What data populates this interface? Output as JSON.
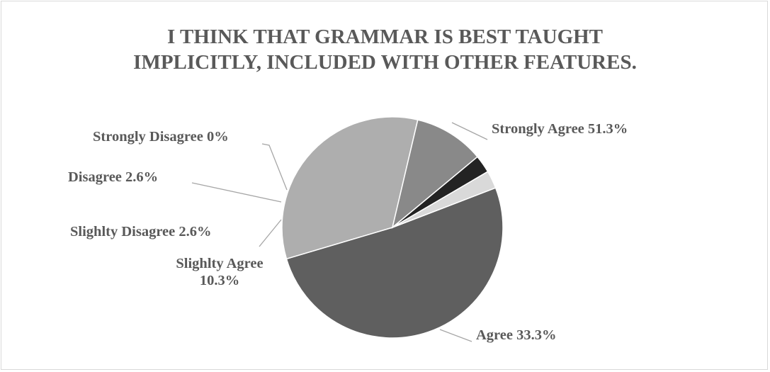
{
  "chart_data": {
    "type": "pie",
    "title_lines": [
      "I THINK THAT GRAMMAR IS BEST TAUGHT",
      "IMPLICITLY, INCLUDED WITH OTHER FEATURES."
    ],
    "slices": [
      {
        "label": "Strongly Agree",
        "value": 51.3,
        "value_label": "51.3%",
        "color": "#5f5f5f"
      },
      {
        "label": "Agree",
        "value": 33.3,
        "value_label": "33.3%",
        "color": "#aeaeae"
      },
      {
        "label": "Slighlty Agree",
        "value": 10.3,
        "value_label": "10.3%",
        "color": "#898989"
      },
      {
        "label": "Slighlty Disagree",
        "value": 2.6,
        "value_label": "2.6%",
        "color": "#232323"
      },
      {
        "label": "Disagree",
        "value": 2.6,
        "value_label": "2.6%",
        "color": "#d9d9d9"
      },
      {
        "label": "Strongly Disagree",
        "value": 0,
        "value_label": "0%",
        "color": "#3a3a3a"
      }
    ],
    "start_angle_deg": -21,
    "direction": "clockwise",
    "legend": "none",
    "data_labels": "outside-with-leader-lines"
  }
}
